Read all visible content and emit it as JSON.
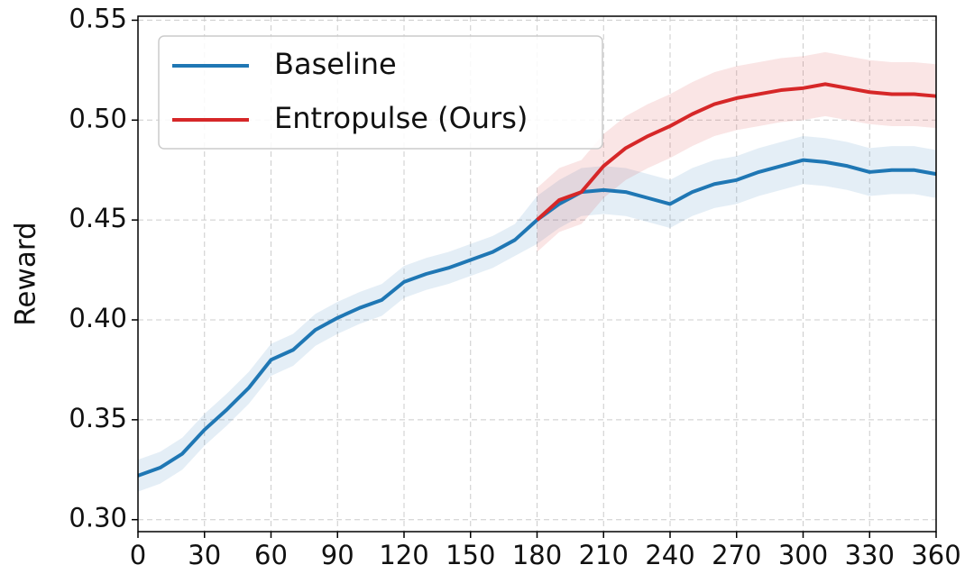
{
  "chart_data": {
    "type": "line",
    "y_label": "Reward",
    "x": [
      0,
      10,
      20,
      30,
      40,
      50,
      60,
      70,
      80,
      90,
      100,
      110,
      120,
      130,
      140,
      150,
      160,
      170,
      180,
      190,
      200,
      210,
      220,
      230,
      240,
      250,
      260,
      270,
      280,
      290,
      300,
      310,
      320,
      330,
      340,
      350,
      360
    ],
    "series": [
      {
        "name": "Baseline",
        "color": "#1f77b4",
        "values": [
          0.322,
          0.326,
          0.333,
          0.345,
          0.355,
          0.366,
          0.38,
          0.385,
          0.395,
          0.401,
          0.406,
          0.41,
          0.419,
          0.423,
          0.426,
          0.43,
          0.434,
          0.44,
          0.45,
          0.458,
          0.464,
          0.465,
          0.464,
          0.461,
          0.458,
          0.464,
          0.468,
          0.47,
          0.474,
          0.477,
          0.48,
          0.479,
          0.477,
          0.474,
          0.475,
          0.475,
          0.473
        ],
        "lower": [
          0.314,
          0.318,
          0.325,
          0.337,
          0.347,
          0.358,
          0.372,
          0.377,
          0.387,
          0.393,
          0.398,
          0.402,
          0.411,
          0.415,
          0.418,
          0.422,
          0.426,
          0.432,
          0.438,
          0.446,
          0.452,
          0.453,
          0.452,
          0.449,
          0.446,
          0.452,
          0.456,
          0.458,
          0.462,
          0.465,
          0.468,
          0.467,
          0.465,
          0.462,
          0.463,
          0.463,
          0.461
        ],
        "upper": [
          0.33,
          0.334,
          0.341,
          0.353,
          0.363,
          0.374,
          0.388,
          0.393,
          0.403,
          0.409,
          0.414,
          0.418,
          0.427,
          0.431,
          0.434,
          0.438,
          0.442,
          0.448,
          0.462,
          0.47,
          0.476,
          0.477,
          0.476,
          0.473,
          0.47,
          0.476,
          0.48,
          0.482,
          0.486,
          0.489,
          0.492,
          0.491,
          0.489,
          0.486,
          0.487,
          0.487,
          0.485
        ]
      },
      {
        "name": "Entropulse (Ours)",
        "color": "#d62728",
        "values": [
          null,
          null,
          null,
          null,
          null,
          null,
          null,
          null,
          null,
          null,
          null,
          null,
          null,
          null,
          null,
          null,
          null,
          null,
          0.45,
          0.46,
          0.464,
          0.477,
          0.486,
          0.492,
          0.497,
          0.503,
          0.508,
          0.511,
          0.513,
          0.515,
          0.516,
          0.518,
          0.516,
          0.514,
          0.513,
          0.513,
          0.512
        ],
        "lower": [
          null,
          null,
          null,
          null,
          null,
          null,
          null,
          null,
          null,
          null,
          null,
          null,
          null,
          null,
          null,
          null,
          null,
          null,
          0.434,
          0.444,
          0.448,
          0.461,
          0.47,
          0.476,
          0.481,
          0.487,
          0.492,
          0.495,
          0.497,
          0.499,
          0.5,
          0.502,
          0.5,
          0.498,
          0.497,
          0.497,
          0.496
        ],
        "upper": [
          null,
          null,
          null,
          null,
          null,
          null,
          null,
          null,
          null,
          null,
          null,
          null,
          null,
          null,
          null,
          null,
          null,
          null,
          0.466,
          0.476,
          0.48,
          0.493,
          0.502,
          0.508,
          0.513,
          0.519,
          0.524,
          0.527,
          0.529,
          0.531,
          0.532,
          0.534,
          0.532,
          0.53,
          0.529,
          0.529,
          0.528
        ]
      }
    ],
    "xlim": [
      0,
      360
    ],
    "xticks": [
      0,
      30,
      60,
      90,
      120,
      150,
      180,
      210,
      240,
      270,
      300,
      330,
      360
    ],
    "ylim": [
      0.294,
      0.552
    ],
    "yticks": [
      {
        "value": 0.3,
        "label": "0.30"
      },
      0.35,
      {
        "value": 0.4,
        "label": "0.40"
      },
      0.45,
      {
        "value": 0.5,
        "label": "0.50"
      },
      0.55
    ],
    "grid": true,
    "legend": "upper left"
  }
}
